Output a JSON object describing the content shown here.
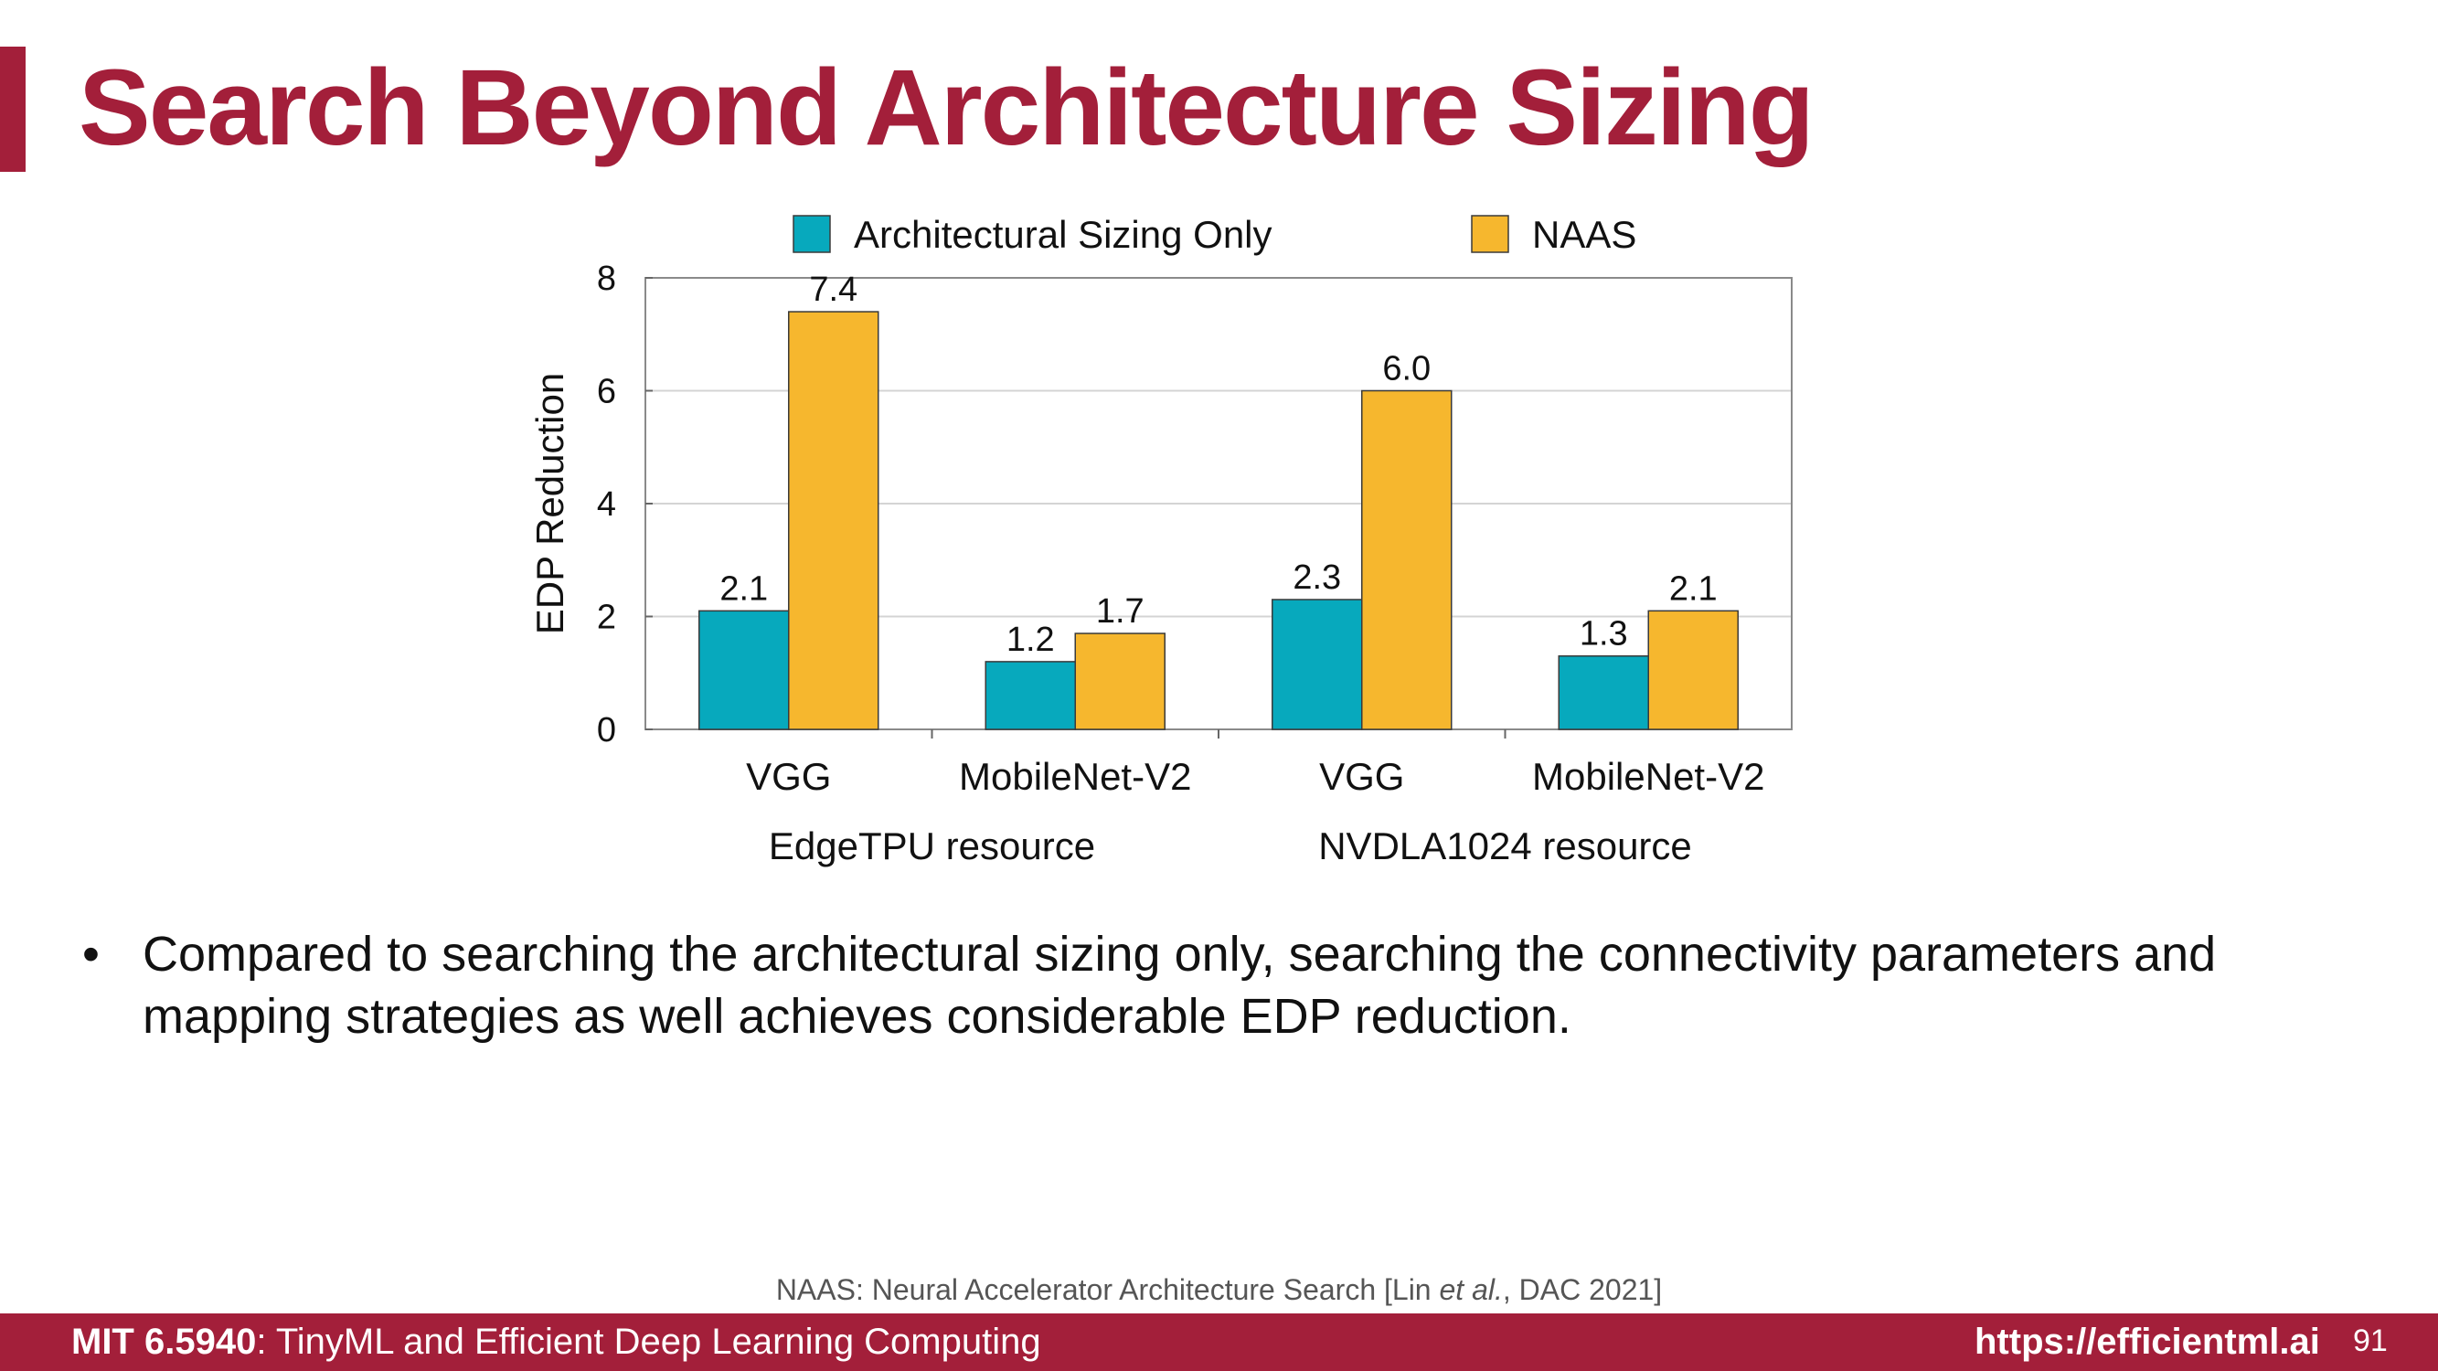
{
  "slide": {
    "title": "Search Beyond Architecture Sizing",
    "bullet": "Compared to searching the architectural sizing only, searching the connectivity parameters and mapping strategies as well achieves considerable EDP reduction.",
    "bullet_marker": "•",
    "citation_prefix": "NAAS: Neural Accelerator Architecture Search [Lin ",
    "citation_italic": "et al.",
    "citation_suffix": ", DAC 2021]"
  },
  "footer": {
    "course_code": "MIT 6.5940",
    "course_name": ": TinyML and Efficient Deep Learning Computing",
    "url": "https://efficientml.ai",
    "page": "91"
  },
  "colors": {
    "brand": "#a31f3a",
    "series_a": "#07a9bd",
    "series_b": "#f6b72e"
  },
  "chart_data": {
    "type": "bar",
    "title": "",
    "ylabel": "EDP Reduction",
    "xlabel": "",
    "ylim": [
      0,
      8
    ],
    "yticks": [
      0,
      2,
      4,
      6,
      8
    ],
    "grid": true,
    "legend_position": "top",
    "categories": [
      "VGG",
      "MobileNet-V2",
      "VGG",
      "MobileNet-V2"
    ],
    "groups": [
      {
        "label": "EdgeTPU resource",
        "categories": [
          0,
          1
        ]
      },
      {
        "label": "NVDLA1024 resource",
        "categories": [
          2,
          3
        ]
      }
    ],
    "series": [
      {
        "name": "Architectural Sizing Only",
        "color": "#07a9bd",
        "values": [
          2.1,
          1.2,
          2.3,
          1.3
        ],
        "labels": [
          "2.1",
          "1.2",
          "2.3",
          "1.3"
        ]
      },
      {
        "name": "NAAS",
        "color": "#f6b72e",
        "values": [
          7.4,
          1.7,
          6.0,
          2.1
        ],
        "labels": [
          "7.4",
          "1.7",
          "6.0",
          "2.1"
        ]
      }
    ]
  }
}
